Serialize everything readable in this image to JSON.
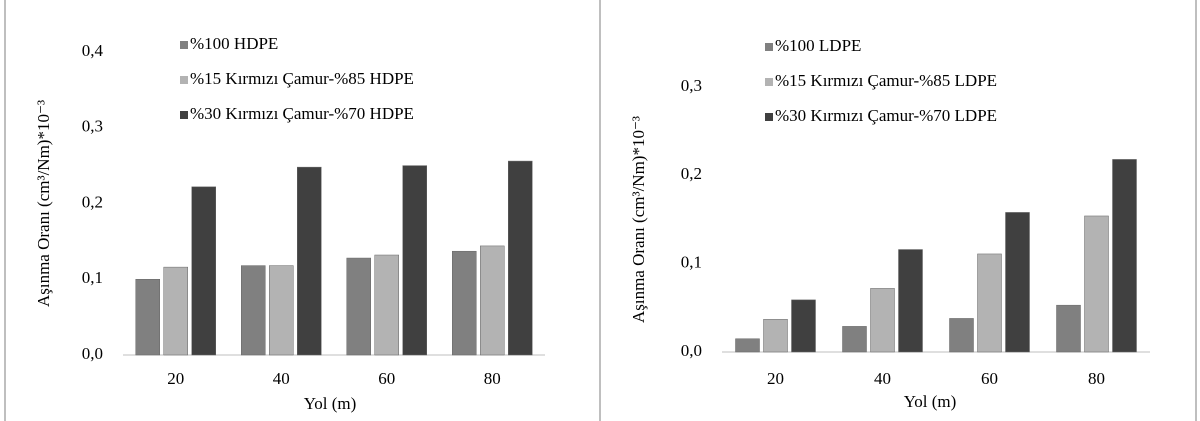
{
  "chart_data": [
    {
      "type": "bar",
      "y_label": "Aşınma Oranı (cm³/Nm)*10⁻³",
      "x_label": "Yol (m)",
      "categories": [
        "20",
        "40",
        "60",
        "80"
      ],
      "series": [
        {
          "name": "%100 HDPE",
          "color": "#808080",
          "values": [
            0.1,
            0.118,
            0.128,
            0.137
          ]
        },
        {
          "name": "%15 Kırmızı Çamur-%85 HDPE",
          "color": "#b3b3b3",
          "values": [
            0.116,
            0.118,
            0.132,
            0.144
          ]
        },
        {
          "name": "%30 Kırmızı Çamur-%70 HDPE",
          "color": "#404040",
          "values": [
            0.222,
            0.248,
            0.25,
            0.256
          ]
        }
      ],
      "ylim": [
        0,
        0.4
      ],
      "yticks": [
        {
          "value": 0,
          "label": "0,0"
        },
        {
          "value": 0.1,
          "label": "0,1"
        },
        {
          "value": 0.2,
          "label": "0,2"
        },
        {
          "value": 0.3,
          "label": "0,3"
        },
        {
          "value": 0.4,
          "label": "0,4"
        }
      ]
    },
    {
      "type": "bar",
      "y_label": "Aşınma Oranı (cm³/Nm)*10⁻³",
      "x_label": "Yol (m)",
      "categories": [
        "20",
        "40",
        "60",
        "80"
      ],
      "series": [
        {
          "name": "%100 LDPE",
          "color": "#808080",
          "values": [
            0.015,
            0.029,
            0.038,
            0.053
          ]
        },
        {
          "name": "%15 Kırmızı Çamur-%85 LDPE",
          "color": "#b3b3b3",
          "values": [
            0.037,
            0.072,
            0.111,
            0.154
          ]
        },
        {
          "name": "%30 Kırmızı Çamur-%70 LDPE",
          "color": "#404040",
          "values": [
            0.059,
            0.116,
            0.158,
            0.218
          ]
        }
      ],
      "ylim": [
        0,
        0.3
      ],
      "yticks": [
        {
          "value": 0,
          "label": "0,0"
        },
        {
          "value": 0.1,
          "label": "0,1"
        },
        {
          "value": 0.2,
          "label": "0,2"
        },
        {
          "value": 0.3,
          "label": "0,3"
        }
      ]
    }
  ]
}
